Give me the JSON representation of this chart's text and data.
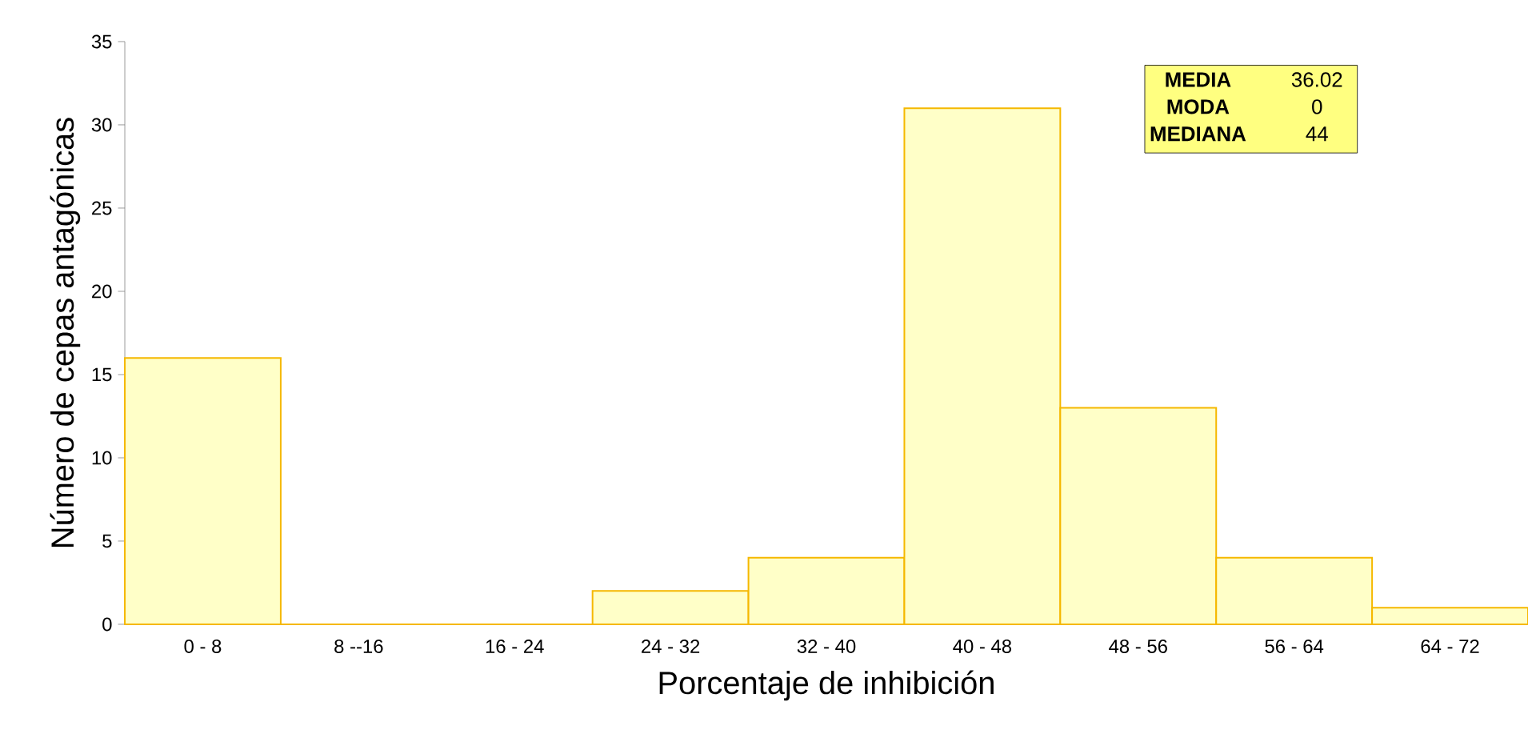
{
  "chart_data": {
    "type": "bar",
    "xlabel": "Porcentaje de inhibición",
    "ylabel": "Número de cepas antagónicas",
    "categories": [
      "0 - 8",
      "8 --16",
      "16 - 24",
      "24 - 32",
      "32 - 40",
      "40 - 48",
      "48 - 56",
      "56 - 64",
      "64 - 72"
    ],
    "values": [
      16,
      0,
      0,
      2,
      4,
      31,
      13,
      4,
      1
    ],
    "color": "#ffffc8",
    "ylim": [
      0,
      35
    ],
    "yticks": [
      0,
      5,
      10,
      15,
      20,
      25,
      30,
      35
    ],
    "grid": false,
    "annotations": [
      "MEDIA",
      "36.02",
      "MODA",
      "0",
      "MEDIANA",
      "44"
    ]
  }
}
